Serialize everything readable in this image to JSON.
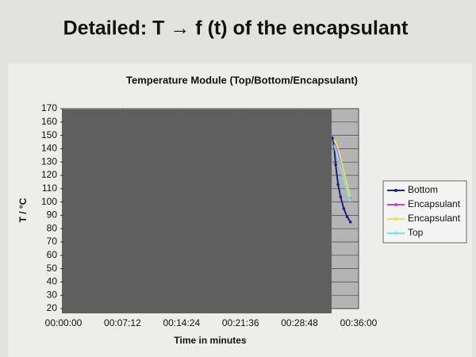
{
  "slide_title": "Detailed: T → f (t) of the encapsulant",
  "chart_data": {
    "type": "line",
    "title": "Temperature Module (Top/Bottom/Encapsulant)",
    "x_label": "Time in minutes",
    "y_label": "T / °C",
    "xlim": [
      0,
      36
    ],
    "xticks": [
      {
        "value": 0,
        "label": "00:00:00"
      },
      {
        "value": 7.2,
        "label": "00:07:12"
      },
      {
        "value": 14.4,
        "label": "00:14:24"
      },
      {
        "value": 21.6,
        "label": "00:21:36"
      },
      {
        "value": 28.8,
        "label": "00:28:48"
      },
      {
        "value": 36,
        "label": "00:36:00"
      }
    ],
    "ylim": [
      20,
      170
    ],
    "yticks": [
      20,
      30,
      40,
      50,
      60,
      70,
      80,
      90,
      100,
      110,
      120,
      130,
      140,
      150,
      160,
      170
    ],
    "grid": true,
    "legend": "right",
    "series": [
      {
        "name": "Bottom",
        "color": "#1a237e",
        "x": [
          32.8,
          33.0,
          33.2,
          33.5,
          33.8,
          34.2,
          34.6,
          35.0
        ],
        "values": [
          148,
          143,
          128,
          113,
          104,
          95,
          89,
          85
        ]
      },
      {
        "name": "Encapsulant",
        "color": "#d040d0",
        "x": [
          33.0,
          33.5,
          34.0,
          34.5,
          35.0
        ],
        "values": [
          146,
          138,
          126,
          113,
          102
        ]
      },
      {
        "name": "Encapsulant",
        "color": "#e8e060",
        "x": [
          33.0,
          33.5,
          34.0,
          34.5,
          35.0
        ],
        "values": [
          147,
          140,
          128,
          115,
          104
        ]
      },
      {
        "name": "Top",
        "color": "#80e0f0",
        "x": [
          33.0,
          33.5,
          34.0,
          34.5,
          35.0
        ],
        "values": [
          143,
          133,
          122,
          110,
          100
        ]
      }
    ]
  }
}
